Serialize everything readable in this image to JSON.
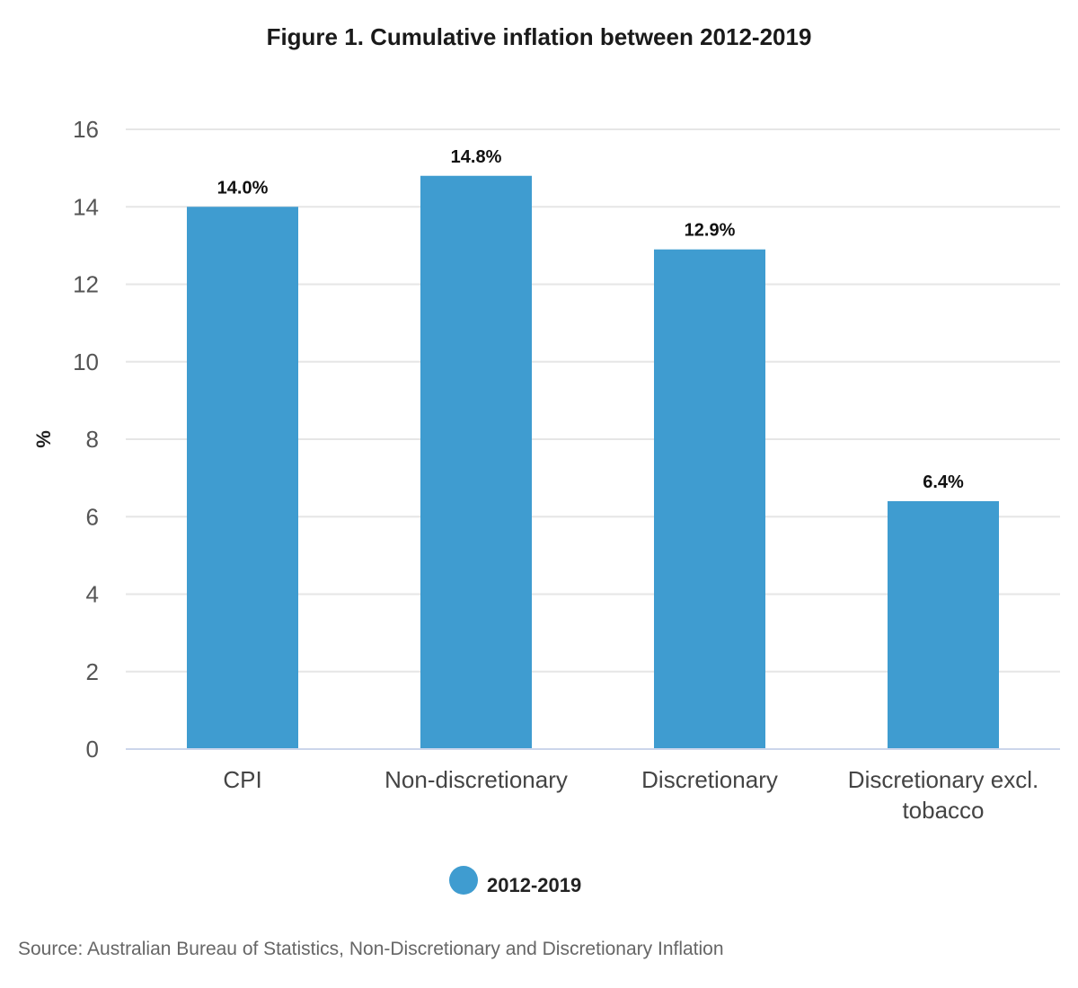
{
  "chart_data": {
    "type": "bar",
    "title": "Figure 1. Cumulative inflation between 2012-2019",
    "xlabel": "",
    "ylabel": "%",
    "ylim": [
      0,
      16
    ],
    "yticks": [
      0,
      2,
      4,
      6,
      8,
      10,
      12,
      14,
      16
    ],
    "grid": true,
    "categories": [
      "CPI",
      "Non-discretionary",
      "Discretionary",
      "Discretionary excl. tobacco"
    ],
    "category_lines": [
      [
        "CPI"
      ],
      [
        "Non-discretionary"
      ],
      [
        "Discretionary"
      ],
      [
        "Discretionary excl.",
        "tobacco"
      ]
    ],
    "series": [
      {
        "name": "2012-2019",
        "color": "#3f9cd0",
        "values": [
          14.0,
          14.8,
          12.9,
          6.4
        ],
        "data_labels": [
          "14.0%",
          "14.8%",
          "12.9%",
          "6.4%"
        ]
      }
    ],
    "legend": {
      "position": "bottom-center",
      "entries": [
        "2012-2019"
      ]
    },
    "source": "Source: Australian Bureau of Statistics, Non-Discretionary and Discretionary Inflation"
  }
}
